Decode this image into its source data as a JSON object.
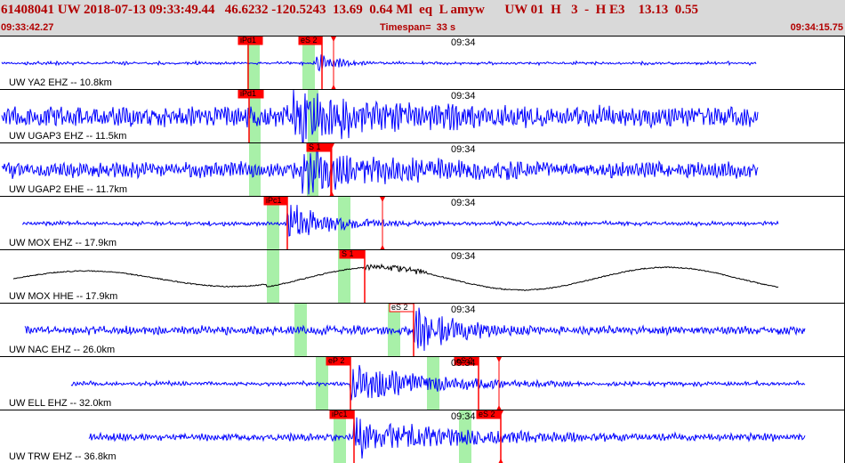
{
  "header": {
    "title": "61408041 UW 2018-07-13 09:33:49.44   46.6232 -120.5243  13.69  0.64 Ml  eq  L amyw      UW 01  H   3  -  H E3    13.13  0.55",
    "time_start": "09:33:42.27",
    "timespan": "Timespan=  33 s",
    "time_end": "09:34:15.75"
  },
  "minute_label": "09:34",
  "colors": {
    "trace_blue": "#0000ff",
    "trace_black": "#000000",
    "pick_red": "#ff0000",
    "window_green": "#a8f0a8",
    "header_text": "#b20000"
  },
  "traces": [
    {
      "label": "UW YA2 EHZ -- 10.8km",
      "color": "blue",
      "amp": 0.25,
      "burst": 0.55,
      "picks": [
        {
          "text": "iPd1",
          "kind": "P"
        },
        {
          "text": "eS 2",
          "kind": "S"
        }
      ]
    },
    {
      "label": "UW UGAP3 EHZ -- 11.5km",
      "color": "blue",
      "amp": 0.55,
      "burst": 0.9,
      "picks": [
        {
          "text": "iPd1",
          "kind": "P"
        }
      ]
    },
    {
      "label": "UW UGAP2 EHE -- 11.7km",
      "color": "blue",
      "amp": 0.45,
      "burst": 0.85,
      "picks": [
        {
          "text": "S 1",
          "kind": "S"
        }
      ]
    },
    {
      "label": "UW MOX EHZ -- 17.9km",
      "color": "blue",
      "amp": 0.15,
      "burst": 0.95,
      "picks": [
        {
          "text": "iPc1",
          "kind": "P"
        }
      ]
    },
    {
      "label": "UW MOX HHE -- 17.9km",
      "color": "black",
      "amp": 0.1,
      "burst": 0.9,
      "picks": [
        {
          "text": "S 1",
          "kind": "S"
        }
      ]
    },
    {
      "label": "UW NAC EHZ -- 26.0km",
      "color": "blue",
      "amp": 0.3,
      "burst": 0.95,
      "picks": [
        {
          "text": "eS 2",
          "kind": "S"
        }
      ]
    },
    {
      "label": "UW ELL EHZ -- 32.0km",
      "color": "blue",
      "amp": 0.15,
      "burst": 0.9,
      "picks": [
        {
          "text": "eP 2",
          "kind": "P"
        },
        {
          "text": "eS 2",
          "kind": "S"
        }
      ]
    },
    {
      "label": "UW TRW EHZ -- 36.8km",
      "color": "blue",
      "amp": 0.25,
      "burst": 0.9,
      "picks": [
        {
          "text": "iPc1",
          "kind": "P"
        },
        {
          "text": "eS 2",
          "kind": "S"
        }
      ]
    }
  ]
}
